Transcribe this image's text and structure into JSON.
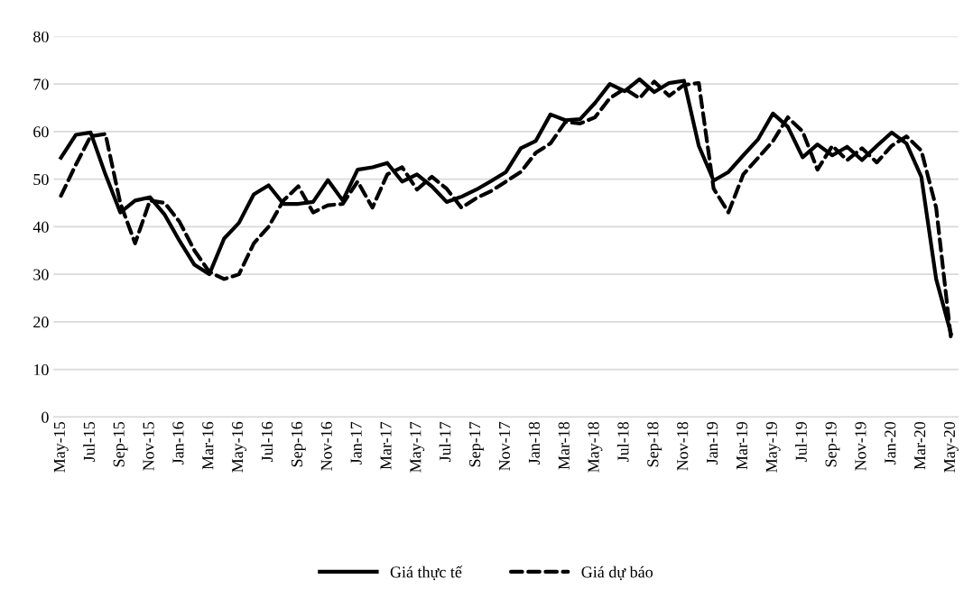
{
  "chart_data": {
    "type": "line",
    "categories": [
      "May-15",
      null,
      "Jul-15",
      null,
      "Sep-15",
      null,
      "Nov-15",
      null,
      "Jan-16",
      null,
      "Mar-16",
      null,
      "May-16",
      null,
      "Jul-16",
      null,
      "Sep-16",
      null,
      "Nov-16",
      null,
      "Jan-17",
      null,
      "Mar-17",
      null,
      "May-17",
      null,
      "Jul-17",
      null,
      "Sep-17",
      null,
      "Nov-17",
      null,
      "Jan-18",
      null,
      "Mar-18",
      null,
      "May-18",
      null,
      "Jul-18",
      null,
      "Sep-18",
      null,
      "Nov-18",
      null,
      "Jan-19",
      null,
      "Mar-19",
      null,
      "May-19",
      null,
      "Jul-19",
      null,
      "Sep-19",
      null,
      "Nov-19",
      null,
      "Jan-20",
      null,
      "Mar-20",
      null,
      "May-20"
    ],
    "series": [
      {
        "name": "Giá thực tế",
        "color": "#000000",
        "line_style": "solid",
        "values": [
          54.5,
          59.3,
          59.8,
          51,
          43,
          45.5,
          46.2,
          42.5,
          37,
          32,
          30,
          37.5,
          40.8,
          46.8,
          48.7,
          44.8,
          44.8,
          45.2,
          49.8,
          45.5,
          52,
          52.5,
          53.4,
          49.5,
          51,
          48.5,
          45.2,
          46.3,
          47.8,
          49.6,
          51.5,
          56.5,
          58,
          63.6,
          62.4,
          62.6,
          66,
          70,
          68.5,
          71,
          68.3,
          70.2,
          70.7,
          57,
          49.7,
          51.5,
          55,
          58.4,
          63.8,
          61,
          54.6,
          57.3,
          55,
          56.8,
          54,
          57,
          59.8,
          57.5,
          50.5,
          29,
          17.5
        ]
      },
      {
        "name": "Giá dự báo",
        "color": "#000000",
        "line_style": "dashed",
        "values": [
          46.5,
          53,
          59,
          59.5,
          45,
          36.5,
          45.5,
          45,
          41,
          35,
          30.5,
          29,
          30,
          36.5,
          40,
          45.5,
          48.5,
          43,
          44.5,
          44.8,
          49.5,
          44,
          51,
          52.5,
          47.8,
          50.5,
          48,
          44,
          46,
          47.5,
          49.5,
          51.5,
          55.5,
          57.5,
          62,
          61.7,
          63,
          67,
          69,
          67,
          70.5,
          67.5,
          69.8,
          70.2,
          48,
          43,
          51,
          54.5,
          58,
          63,
          60,
          52,
          57,
          54,
          56.5,
          53.5,
          57,
          59,
          56,
          44,
          16.5
        ]
      }
    ],
    "ylim": [
      0,
      80
    ],
    "yticks": [
      0,
      10,
      20,
      30,
      40,
      50,
      60,
      70,
      80
    ],
    "grid": "y",
    "legend": "bottom",
    "marker": "none"
  }
}
